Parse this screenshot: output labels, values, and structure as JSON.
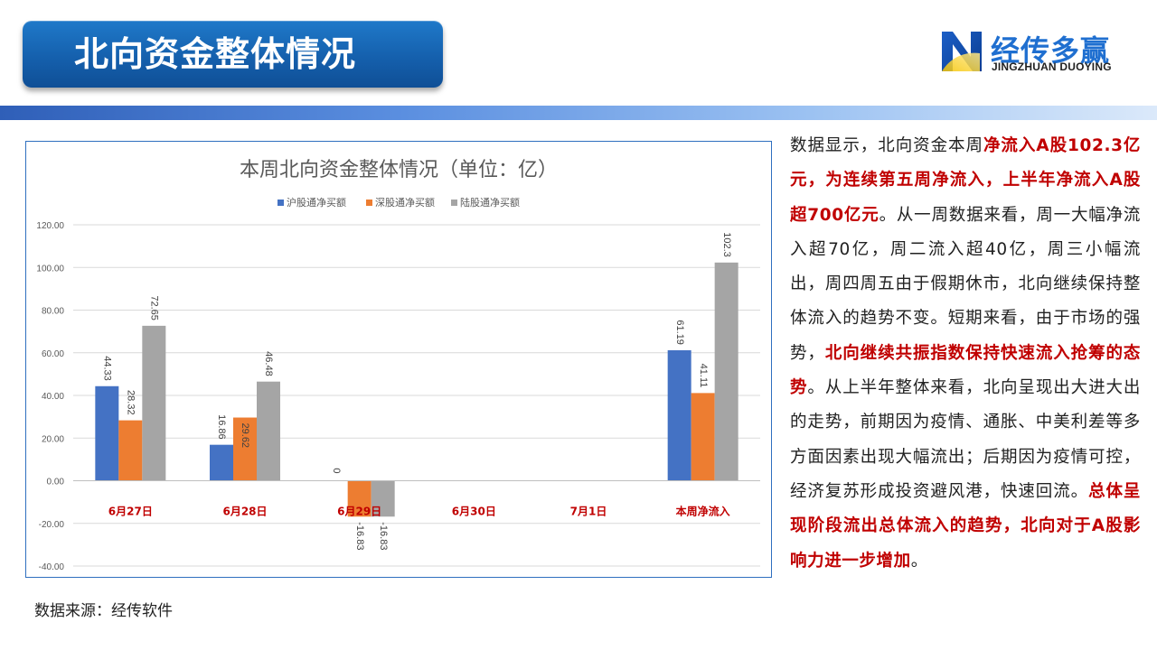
{
  "header": {
    "title": "北向资金整体情况",
    "logo_cn": "经传多赢",
    "logo_en": "JINGZHUAN DUOYING"
  },
  "chart_data": {
    "type": "bar",
    "title": "本周北向资金整体情况（单位：亿）",
    "categories": [
      "6月27日",
      "6月28日",
      "6月29日",
      "6月30日",
      "7月1日",
      "本周净流入"
    ],
    "series": [
      {
        "name": "沪股通净买额",
        "color": "#4472c4",
        "values": [
          44.33,
          16.86,
          0,
          null,
          null,
          61.19
        ],
        "labels": [
          "44.33",
          "16.86",
          "0",
          "",
          "",
          "61.19"
        ]
      },
      {
        "name": "深股通净买额",
        "color": "#ed7d31",
        "values": [
          28.32,
          29.62,
          -16.83,
          null,
          null,
          41.11
        ],
        "labels": [
          "28.32",
          "29.62",
          "-16.83",
          "",
          "",
          "41.11"
        ]
      },
      {
        "name": "陆股通净买额",
        "color": "#a5a5a5",
        "values": [
          72.65,
          46.48,
          -16.83,
          null,
          null,
          102.3
        ],
        "labels": [
          "72.65",
          "46.48",
          "-16.83",
          "",
          "",
          "102.3"
        ]
      }
    ],
    "ylim": [
      -40,
      120
    ],
    "yticks": [
      "120.00",
      "100.00",
      "80.00",
      "60.00",
      "40.00",
      "20.00",
      "0.00",
      "-20.00",
      "-40.00"
    ],
    "ytick_values": [
      120,
      100,
      80,
      60,
      40,
      20,
      0,
      -20,
      -40
    ],
    "grid": true,
    "legend_position": "top",
    "category_label_color": "#c00000"
  },
  "source": "数据来源：经传软件",
  "commentary": [
    {
      "text": "数据显示，北向资金本周",
      "highlight": false
    },
    {
      "text": "净流入A股102.3亿元，为连续第五周净流入，上半年净流入A股超700亿元",
      "highlight": true
    },
    {
      "text": "。从一周数据来看，周一大幅净流入超70亿，周二流入超40亿，周三小幅流出，周四周五由于假期休市，北向继续保持整体流入的趋势不变。短期来看，由于市场的强势，",
      "highlight": false
    },
    {
      "text": "北向继续共振指数保持快速流入抢筹的态势",
      "highlight": true
    },
    {
      "text": "。从上半年整体来看，北向呈现出大进大出的走势，前期因为疫情、通胀、中美利差等多方面因素出现大幅流出；后期因为疫情可控，经济复苏形成投资避风港，快速回流。",
      "highlight": false
    },
    {
      "text": "总体呈现阶段流出总体流入的趋势，北向对于A股影响力进一步增加",
      "highlight": true
    },
    {
      "text": "。",
      "highlight": false
    }
  ]
}
